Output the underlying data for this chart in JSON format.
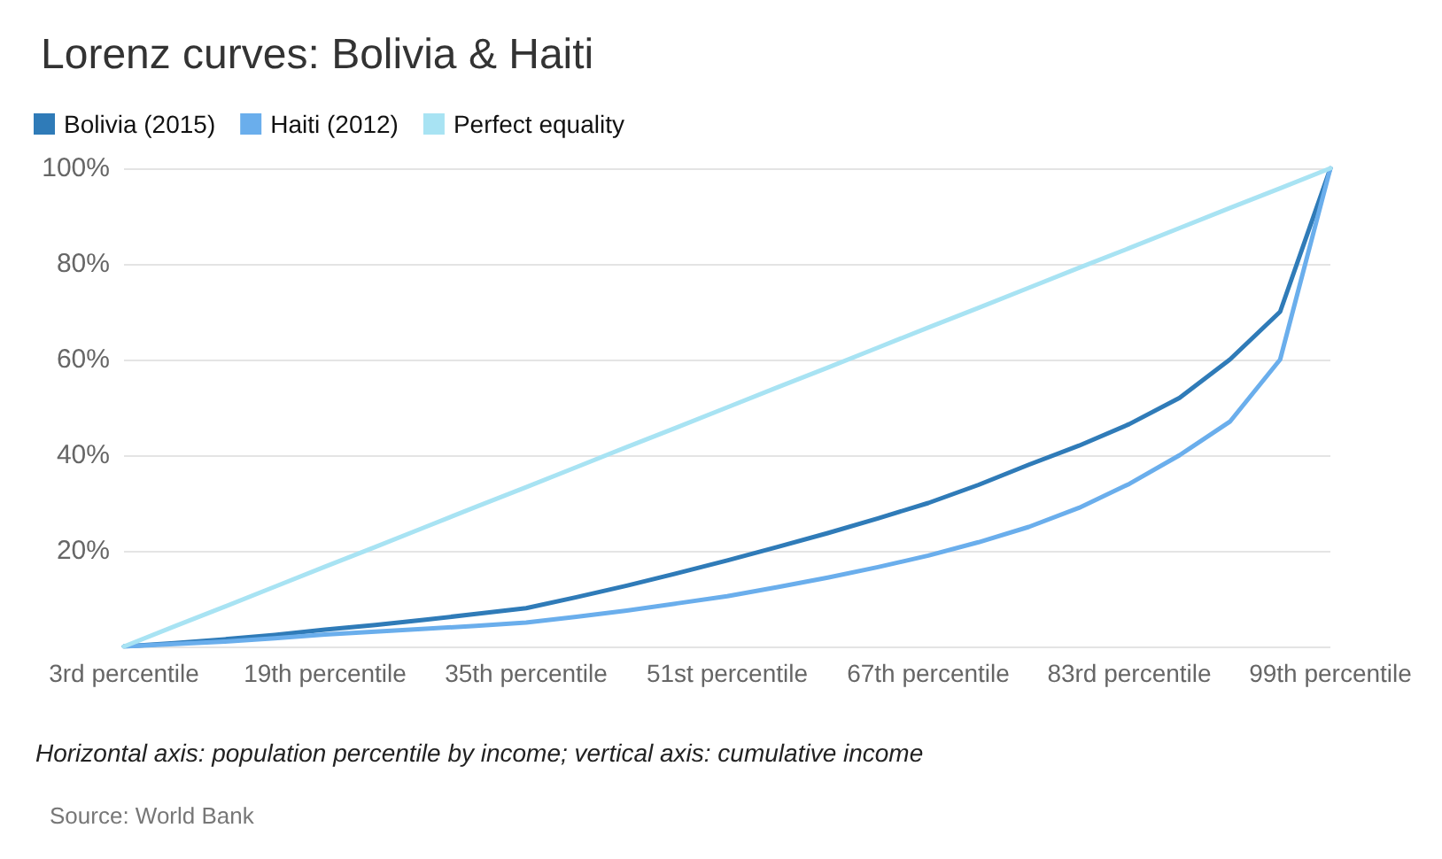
{
  "chart_data": {
    "type": "line",
    "title": "Lorenz curves: Bolivia & Haiti",
    "categories": [
      "3rd percentile",
      null,
      null,
      null,
      "19th percentile",
      null,
      null,
      null,
      "35th percentile",
      null,
      null,
      null,
      "51st percentile",
      null,
      null,
      null,
      "67th percentile",
      null,
      null,
      null,
      "83rd percentile",
      null,
      null,
      null,
      "99th percentile"
    ],
    "series": [
      {
        "name": "Bolivia (2015)",
        "color": "#2f7bb8",
        "values": [
          0,
          0.7,
          1.5,
          2.4,
          3.5,
          4.5,
          5.6,
          6.8,
          8,
          10.3,
          12.7,
          15.3,
          18,
          20.8,
          23.7,
          26.8,
          30,
          33.8,
          38,
          42,
          46.5,
          52,
          60,
          70,
          100
        ]
      },
      {
        "name": "Haiti (2012)",
        "color": "#6aaeec",
        "values": [
          0,
          0.5,
          1,
          1.7,
          2.5,
          3.1,
          3.7,
          4.3,
          5,
          6.2,
          7.5,
          9,
          10.5,
          12.4,
          14.4,
          16.6,
          19,
          21.8,
          25,
          29,
          34,
          40,
          47,
          60,
          100
        ]
      },
      {
        "name": "Perfect equality",
        "color": "#a8e3f3",
        "values": [
          0,
          4.2,
          8.3,
          12.5,
          16.7,
          20.8,
          25,
          29.2,
          33.3,
          37.5,
          41.7,
          45.8,
          50,
          54.2,
          58.3,
          62.5,
          66.7,
          70.8,
          75,
          79.2,
          83.3,
          87.5,
          91.7,
          95.8,
          100
        ]
      }
    ],
    "ylim": [
      0,
      100
    ],
    "yticks": [
      {
        "value": 0,
        "label": null
      },
      {
        "value": 20,
        "label": "20%"
      },
      {
        "value": 40,
        "label": "40%"
      },
      {
        "value": 60,
        "label": "60%"
      },
      {
        "value": 80,
        "label": "80%"
      },
      {
        "value": 100,
        "label": "100%"
      }
    ],
    "grid": "y",
    "legend": "top left",
    "marker": "none",
    "line_style": "solid",
    "annotations": [
      "Horizontal axis: population percentile by income; vertical axis: cumulative income",
      "Source: World Bank"
    ]
  }
}
